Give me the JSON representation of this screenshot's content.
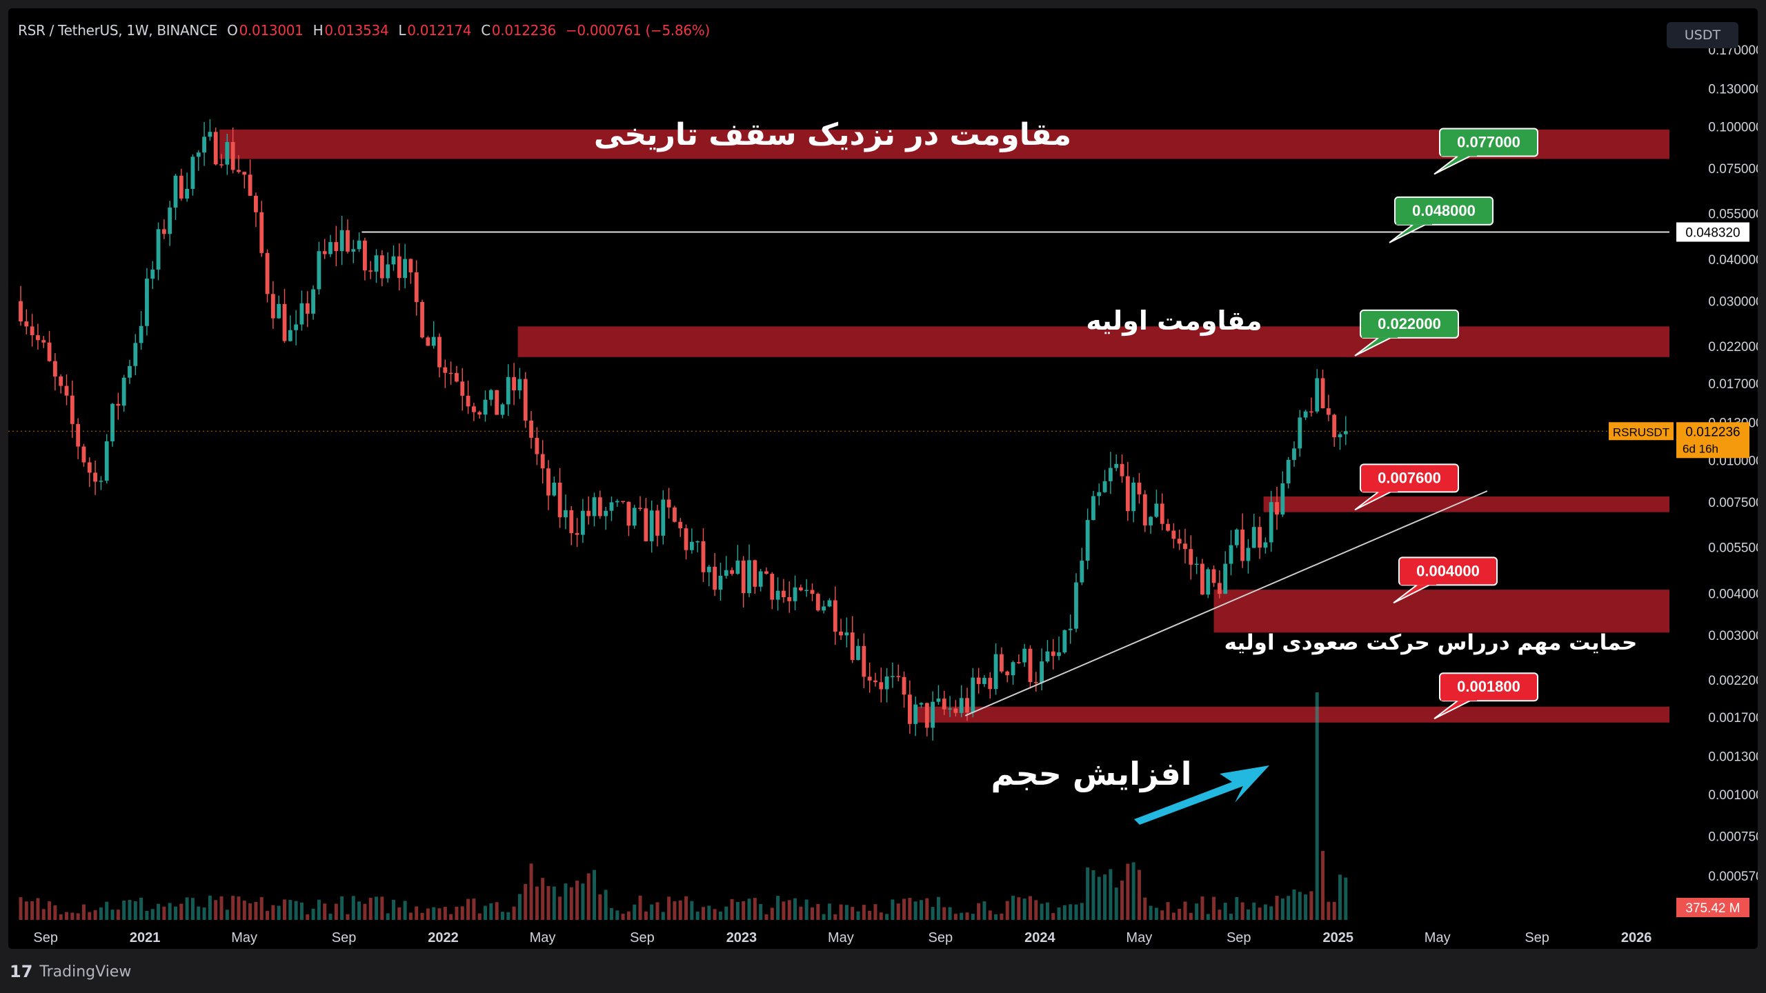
{
  "header": {
    "symbol": "RSR / TetherUS, 1W, BINANCE",
    "o_label": "O",
    "o_value": "0.013001",
    "h_label": "H",
    "h_value": "0.013534",
    "l_label": "L",
    "l_value": "0.012174",
    "c_label": "C",
    "c_value": "0.012236",
    "change": "−0.000761 (−5.86%)"
  },
  "currency_button": "USDT",
  "footer": {
    "logo_icon": "tradingview-logo-icon",
    "logo_glyph": "17",
    "brand": "TradingView"
  },
  "colors": {
    "zone": "#9e1b24",
    "up": "#26a69a",
    "down": "#ef5350",
    "green_label": "#2e9e47",
    "red_label": "#e8222e",
    "arrow": "#22b8e0",
    "price_tag": "#f59a0c"
  },
  "chart_data": {
    "type": "candlestick",
    "symbol": "RSRUSDT",
    "interval": "1W",
    "y_scale": "log",
    "y_ticks": [
      "0.170000",
      "0.130000",
      "0.100000",
      "0.075000",
      "0.055000",
      "0.040000",
      "0.030000",
      "0.022000",
      "0.017000",
      "0.013000",
      "0.010000",
      "0.007500",
      "0.005500",
      "0.004000",
      "0.003000",
      "0.002200",
      "0.001700",
      "0.001300",
      "0.001000",
      "0.000750",
      "0.000570"
    ],
    "x_ticks": [
      "Sep",
      "2021",
      "May",
      "Sep",
      "2022",
      "May",
      "Sep",
      "2023",
      "May",
      "Sep",
      "2024",
      "May",
      "Sep",
      "2025",
      "May",
      "Sep",
      "2026"
    ],
    "last_price": {
      "symbol": "RSRUSDT",
      "value": "0.012236",
      "countdown": "6d 16h"
    },
    "horizontal_line": {
      "value": "0.048320"
    },
    "volume_label": "375.42 M",
    "price_path": [
      [
        "2020-08",
        0.03
      ],
      [
        "2020-09",
        0.02
      ],
      [
        "2020-10",
        0.013
      ],
      [
        "2020-11",
        0.0085
      ],
      [
        "2020-12",
        0.016
      ],
      [
        "2021-01",
        0.03
      ],
      [
        "2021-02",
        0.06
      ],
      [
        "2021-03",
        0.08
      ],
      [
        "2021-04",
        0.09
      ],
      [
        "2021-05",
        0.072
      ],
      [
        "2021-06",
        0.032
      ],
      [
        "2021-07",
        0.022
      ],
      [
        "2021-08",
        0.038
      ],
      [
        "2021-09",
        0.048
      ],
      [
        "2021-10",
        0.036
      ],
      [
        "2021-11",
        0.044
      ],
      [
        "2021-12",
        0.028
      ],
      [
        "2022-01",
        0.02
      ],
      [
        "2022-02",
        0.016
      ],
      [
        "2022-03",
        0.014
      ],
      [
        "2022-04",
        0.017
      ],
      [
        "2022-05",
        0.0085
      ],
      [
        "2022-06",
        0.0065
      ],
      [
        "2022-07",
        0.007
      ],
      [
        "2022-08",
        0.0068
      ],
      [
        "2022-09",
        0.0063
      ],
      [
        "2022-10",
        0.0068
      ],
      [
        "2022-11",
        0.0055
      ],
      [
        "2022-12",
        0.004
      ],
      [
        "2023-01",
        0.0045
      ],
      [
        "2023-02",
        0.0046
      ],
      [
        "2023-03",
        0.0036
      ],
      [
        "2023-04",
        0.004
      ],
      [
        "2023-05",
        0.0034
      ],
      [
        "2023-06",
        0.0024
      ],
      [
        "2023-07",
        0.0021
      ],
      [
        "2023-08",
        0.0017
      ],
      [
        "2023-09",
        0.00175
      ],
      [
        "2023-10",
        0.00185
      ],
      [
        "2023-11",
        0.0023
      ],
      [
        "2023-12",
        0.0026
      ],
      [
        "2024-01",
        0.0023
      ],
      [
        "2024-02",
        0.0027
      ],
      [
        "2024-03",
        0.0065
      ],
      [
        "2024-04",
        0.0095
      ],
      [
        "2024-05",
        0.007
      ],
      [
        "2024-06",
        0.0068
      ],
      [
        "2024-07",
        0.005
      ],
      [
        "2024-08",
        0.0041
      ],
      [
        "2024-09",
        0.0056
      ],
      [
        "2024-10",
        0.0062
      ],
      [
        "2024-11",
        0.009
      ],
      [
        "2024-12",
        0.016
      ],
      [
        "2025-01",
        0.0122
      ]
    ]
  },
  "annotations": {
    "zones": [
      {
        "id": "ath-resistance",
        "low": 0.08,
        "high": 0.098,
        "start": "2021-04"
      },
      {
        "id": "initial-resistance",
        "low": 0.0204,
        "high": 0.0252,
        "start": "2022-04"
      },
      {
        "id": "mid-support",
        "low": 0.007,
        "high": 0.0078,
        "start": "2024-10"
      },
      {
        "id": "key-support",
        "low": 0.00305,
        "high": 0.0041,
        "start": "2024-08"
      },
      {
        "id": "base-support",
        "low": 0.00164,
        "high": 0.00183,
        "start": "2023-08"
      }
    ],
    "labels": [
      {
        "text": "0.077000",
        "color": "green",
        "value": 0.077
      },
      {
        "text": "0.048000",
        "color": "green",
        "value": 0.048
      },
      {
        "text": "0.022000",
        "color": "green",
        "value": 0.022
      },
      {
        "text": "0.007600",
        "color": "red",
        "value": 0.0076
      },
      {
        "text": "0.004000",
        "color": "red",
        "value": 0.004
      },
      {
        "text": "0.001800",
        "color": "red",
        "value": 0.0018
      }
    ],
    "texts": {
      "ath_resistance": "مقاومت در نزدیک سقف تاریخی",
      "initial_resistance": "مقاومت اولیه",
      "key_support": "حمایت مهم درراس حرکت صعودی اولیه",
      "volume_increase": "افزایش حجم"
    }
  }
}
